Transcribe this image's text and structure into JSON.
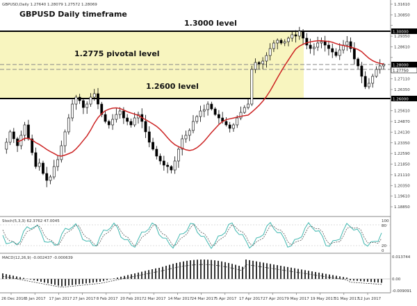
{
  "window": {
    "symbol_header": "GBPUSD,Daily  1.27640 1.28079 1.27572 1.28069"
  },
  "annotations": {
    "title": "GBPUSD Daily timeframe",
    "level_1300": "1.3000 level",
    "level_12775": "1.2775 pivotal level",
    "level_1260": "1.2600 level"
  },
  "colors": {
    "zone_fill": "#f8f5bf",
    "ma_line": "#cc2222",
    "stoch_main": "#40b8b0",
    "candle_up": "#ffffff",
    "candle_down": "#000000",
    "macd_bar": "#000000"
  },
  "price_axis": {
    "ticks": [
      "1.31610",
      "1.30850",
      "1.30000",
      "1.29350",
      "1.28610",
      "1.28000",
      "1.27750",
      "1.27110",
      "1.26350",
      "1.26000",
      "1.25610",
      "1.24870",
      "1.24130",
      "1.23350",
      "1.22590",
      "1.21850",
      "1.21110",
      "1.20350",
      "1.19610",
      "1.18850"
    ]
  },
  "stoch": {
    "header": "Stoch(5,3,3) 62.3762 47.0045",
    "levels": [
      "100",
      "80",
      "20",
      "0"
    ]
  },
  "macd": {
    "header": "MACD(12,26,9) -0.002437 -0.000639",
    "levels": [
      "0.013744",
      "0.00",
      "-0.009091"
    ]
  },
  "time_axis": {
    "labels": [
      "26 Dec 2016",
      "5 Jan 2017",
      "17 Jan 2017",
      "27 Jan 2017",
      "8 Feb 2017",
      "20 Feb 2017",
      "2 Mar 2017",
      "14 Mar 2017",
      "24 Mar 2017",
      "5 Apr 2017",
      "17 Apr 2017",
      "27 Apr 2017",
      "9 May 2017",
      "19 May 2017",
      "31 May 2017",
      "12 Jun 2017"
    ]
  }
}
